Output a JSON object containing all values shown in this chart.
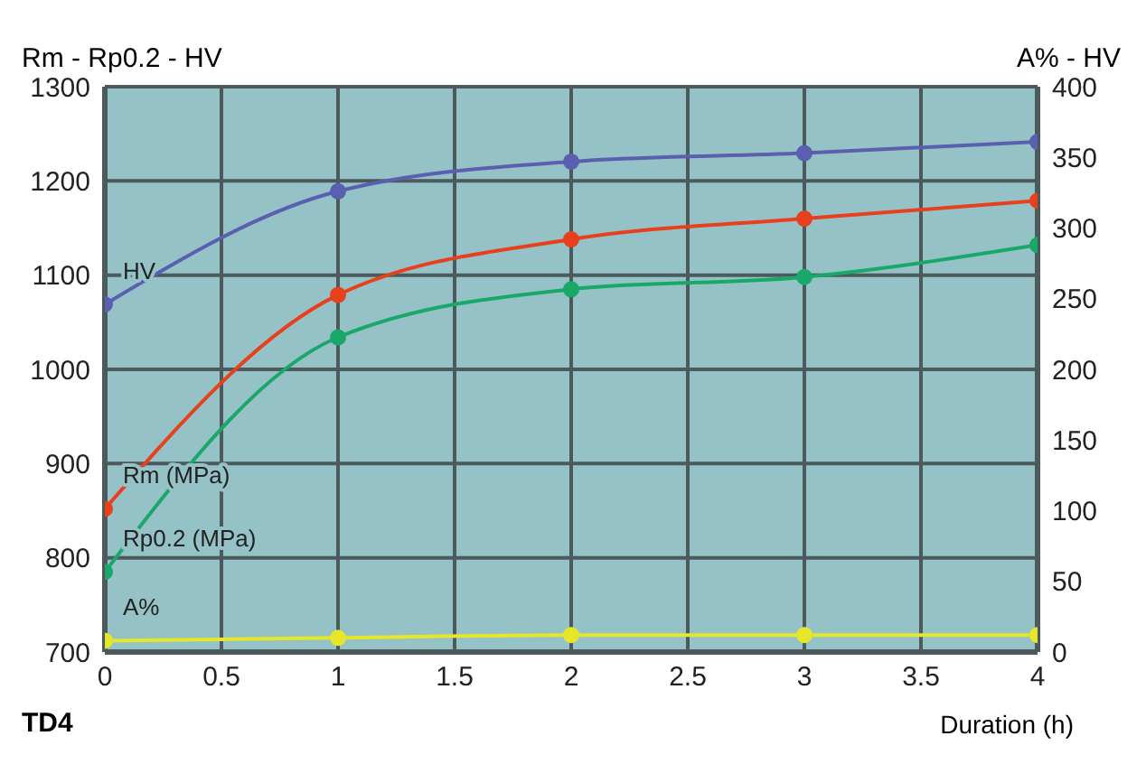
{
  "chart_data": {
    "type": "line",
    "ylabel": "Rm - Rp0.2 - HV",
    "y2label": "A% - HV",
    "xlabel": "Duration (h)",
    "annotations": [
      "TD4"
    ],
    "x": [
      0,
      1,
      2,
      3,
      4
    ],
    "xlim": [
      0,
      4
    ],
    "xticks": [
      0,
      0.5,
      1,
      1.5,
      2,
      2.5,
      3,
      3.5,
      4
    ],
    "ylim": [
      700,
      1300
    ],
    "yticks": [
      700,
      800,
      900,
      1000,
      1100,
      1200,
      1300
    ],
    "y2lim": [
      0,
      400
    ],
    "y2ticks": [
      0,
      50,
      100,
      150,
      200,
      250,
      300,
      350,
      400
    ],
    "grid": true,
    "legend": false,
    "marker": "circle",
    "line_style": "solid",
    "series": [
      {
        "name": "HV",
        "color": "#5a5fb0",
        "axis": "y2",
        "values": [
          246,
          326,
          347,
          353,
          361
        ]
      },
      {
        "name": "Rm (MPa)",
        "color": "#e8401c",
        "values": [
          852,
          1079,
          1138,
          1160,
          1179
        ]
      },
      {
        "name": "Rp0.2 (MPa)",
        "color": "#1aa86a",
        "values": [
          785,
          1034,
          1085,
          1098,
          1132
        ]
      },
      {
        "name": "A%",
        "color": "#e6e62a",
        "axis": "y2",
        "values": [
          8,
          10,
          12,
          12,
          12
        ]
      }
    ]
  }
}
